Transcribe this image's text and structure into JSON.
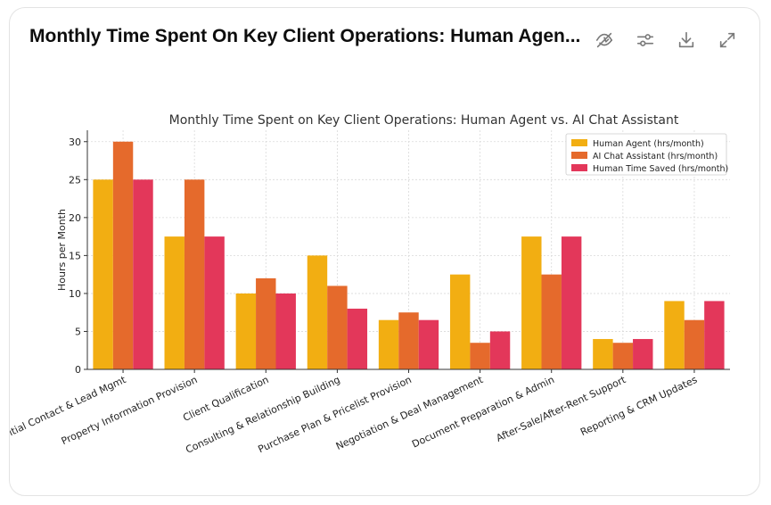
{
  "header": {
    "title": "Monthly Time Spent On Key Client Operations: Human Agen...",
    "toolbar": {
      "hide_icon": "eye-off-icon",
      "settings_icon": "sliders-icon",
      "download_icon": "download-icon",
      "expand_icon": "expand-icon"
    }
  },
  "chart_data": {
    "type": "bar",
    "title": "Monthly Time Spent on Key Client Operations: Human Agent vs. AI Chat Assistant",
    "xlabel": "",
    "ylabel": "Hours per Month",
    "ylim": [
      0,
      31.5
    ],
    "yticks": [
      0,
      5,
      10,
      15,
      20,
      25,
      30
    ],
    "grid": true,
    "legend_position": "top-right",
    "categories": [
      "Initial Contact & Lead Mgmt",
      "Property Information Provision",
      "Client Qualification",
      "Consulting & Relationship Building",
      "Purchase Plan & Pricelist Provision",
      "Negotiation & Deal Management",
      "Document Preparation & Admin",
      "After-Sale/After-Rent Support",
      "Reporting & CRM Updates"
    ],
    "series": [
      {
        "name": "Human Agent (hrs/month)",
        "color": "#f2ae12",
        "values": [
          25,
          17.5,
          10,
          15,
          6.5,
          12.5,
          17.5,
          4,
          9
        ]
      },
      {
        "name": "AI Chat Assistant (hrs/month)",
        "color": "#e56a2c",
        "values": [
          30,
          25,
          12,
          11,
          7.5,
          3.5,
          12.5,
          3.5,
          6.5
        ]
      },
      {
        "name": "Human Time Saved (hrs/month)",
        "color": "#e3375a",
        "values": [
          25,
          17.5,
          10,
          8,
          6.5,
          5,
          17.5,
          4,
          9
        ]
      }
    ]
  }
}
